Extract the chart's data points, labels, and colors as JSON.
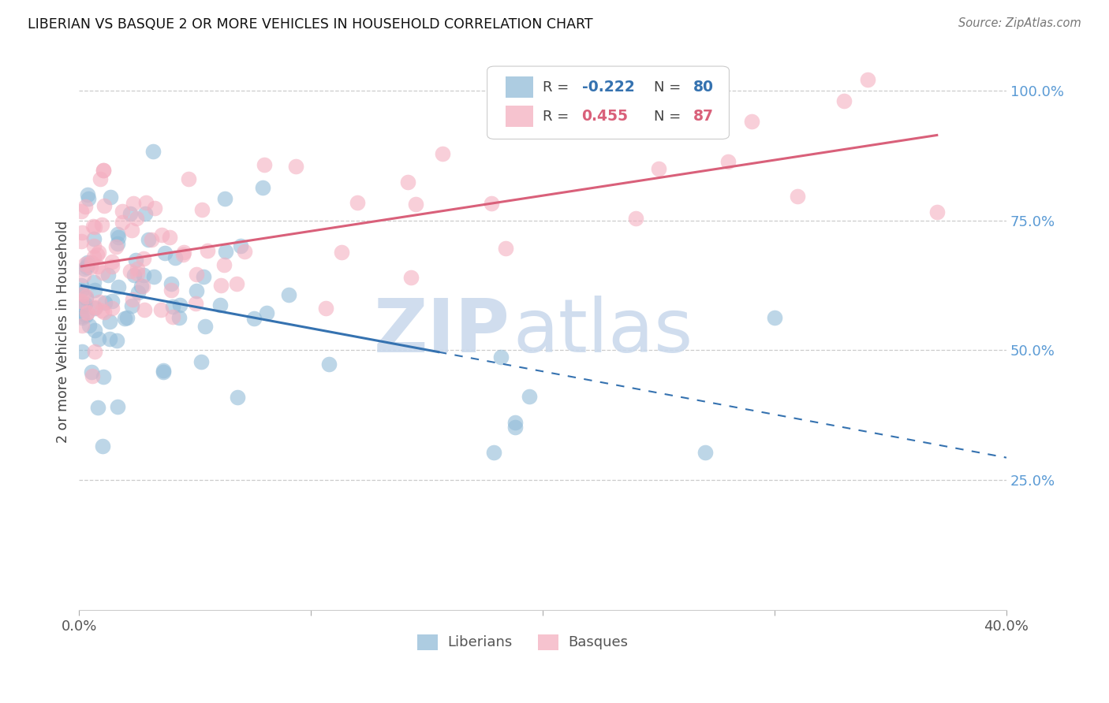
{
  "title": "LIBERIAN VS BASQUE 2 OR MORE VEHICLES IN HOUSEHOLD CORRELATION CHART",
  "source": "Source: ZipAtlas.com",
  "ylabel": "2 or more Vehicles in Household",
  "xlim": [
    0.0,
    0.4
  ],
  "ylim": [
    0.0,
    1.07
  ],
  "liberian_R": -0.222,
  "liberian_N": 80,
  "basque_R": 0.455,
  "basque_N": 87,
  "liberian_color": "#92bcd8",
  "basque_color": "#f4afc0",
  "liberian_line_color": "#3572b0",
  "basque_line_color": "#d9607a",
  "liberian_line_solid_end": 0.155,
  "basque_line_end": 0.38,
  "lib_line_y0": 0.625,
  "lib_line_slope": -0.8,
  "bas_line_y0": 0.665,
  "bas_line_slope": 0.88
}
